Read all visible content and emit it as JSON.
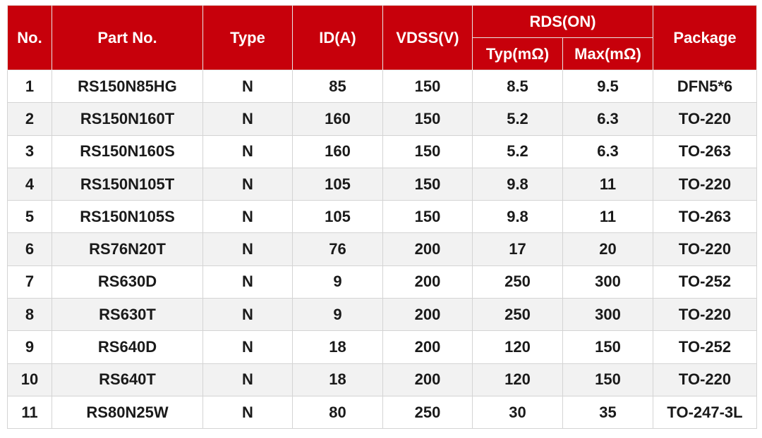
{
  "table": {
    "header": {
      "no": "No.",
      "part": "Part No.",
      "type": "Type",
      "id": "ID(A)",
      "vdss": "VDSS(V)",
      "rds": "RDS(ON)",
      "typ": "Typ(mΩ)",
      "max": "Max(mΩ)",
      "package": "Package"
    },
    "rows": [
      [
        1,
        "RS150N85HG",
        "N",
        85,
        150,
        8.5,
        9.5,
        "DFN5*6"
      ],
      [
        2,
        "RS150N160T",
        "N",
        160,
        150,
        5.2,
        6.3,
        "TO-220"
      ],
      [
        3,
        "RS150N160S",
        "N",
        160,
        150,
        5.2,
        6.3,
        "TO-263"
      ],
      [
        4,
        "RS150N105T",
        "N",
        105,
        150,
        9.8,
        11,
        "TO-220"
      ],
      [
        5,
        "RS150N105S",
        "N",
        105,
        150,
        9.8,
        11,
        "TO-263"
      ],
      [
        6,
        "RS76N20T",
        "N",
        76,
        200,
        17,
        20,
        "TO-220"
      ],
      [
        7,
        "RS630D",
        "N",
        9,
        200,
        250,
        300,
        "TO-252"
      ],
      [
        8,
        "RS630T",
        "N",
        9,
        200,
        250,
        300,
        "TO-220"
      ],
      [
        9,
        "RS640D",
        "N",
        18,
        200,
        120,
        150,
        "TO-252"
      ],
      [
        10,
        "RS640T",
        "N",
        18,
        200,
        120,
        150,
        "TO-220"
      ],
      [
        11,
        "RS80N25W",
        "N",
        80,
        250,
        30,
        35,
        "TO-247-3L"
      ]
    ]
  }
}
